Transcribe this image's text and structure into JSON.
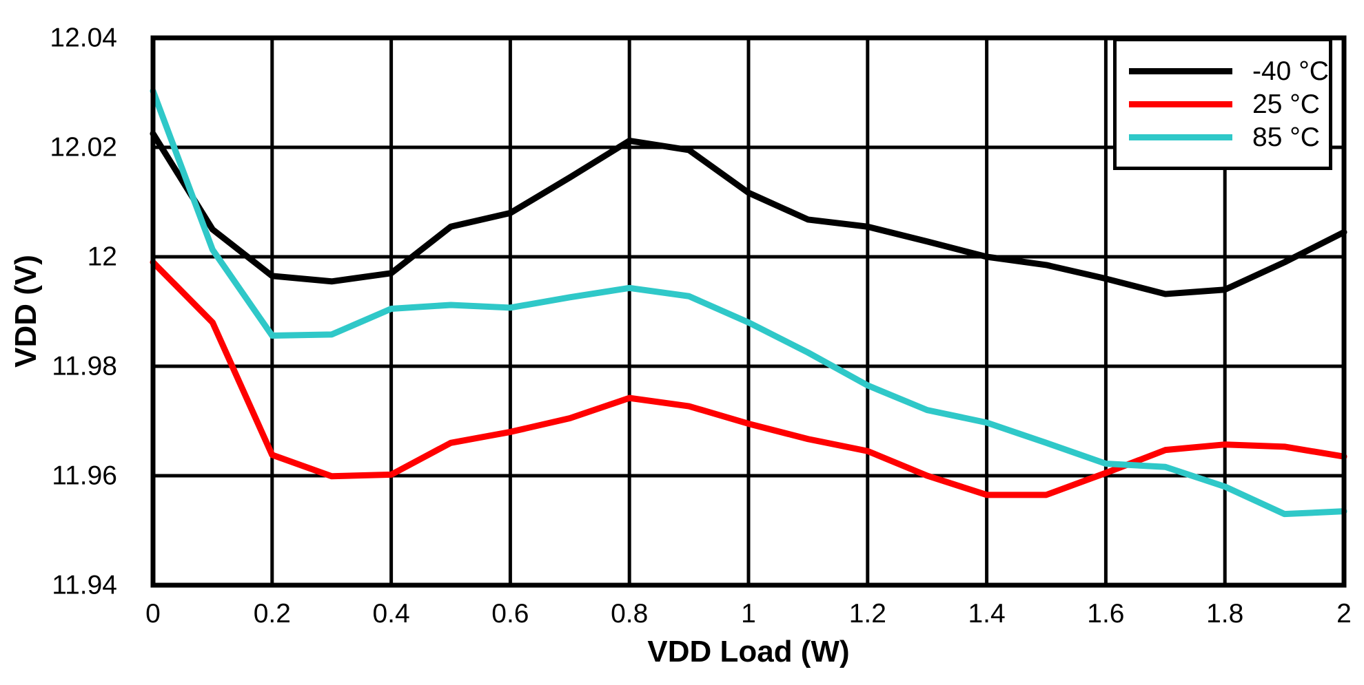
{
  "figure": {
    "background": "#FFFFFF",
    "axis_color": "#000000",
    "grid_color": "#000000"
  },
  "chart_data": {
    "type": "line",
    "title": "",
    "xlabel": "VDD Load (W)",
    "ylabel": "VDD (V)",
    "xlim": [
      0,
      2
    ],
    "ylim": [
      11.94,
      12.04
    ],
    "grid": true,
    "legend_position": "top-right",
    "x_ticks": [
      {
        "v": 0,
        "label": "0"
      },
      {
        "v": 0.2,
        "label": "0.2"
      },
      {
        "v": 0.4,
        "label": "0.4"
      },
      {
        "v": 0.6,
        "label": "0.6"
      },
      {
        "v": 0.8,
        "label": "0.8"
      },
      {
        "v": 1,
        "label": "1"
      },
      {
        "v": 1.2,
        "label": "1.2"
      },
      {
        "v": 1.4,
        "label": "1.4"
      },
      {
        "v": 1.6,
        "label": "1.6"
      },
      {
        "v": 1.8,
        "label": "1.8"
      },
      {
        "v": 2,
        "label": "2"
      }
    ],
    "y_ticks": [
      {
        "v": 11.94,
        "label": "11.94"
      },
      {
        "v": 11.96,
        "label": "11.96"
      },
      {
        "v": 11.98,
        "label": "11.98"
      },
      {
        "v": 12,
        "label": "12"
      },
      {
        "v": 12.02,
        "label": "12.02"
      },
      {
        "v": 12.04,
        "label": "12.04"
      }
    ],
    "x": [
      0,
      0.1,
      0.2,
      0.3,
      0.4,
      0.5,
      0.6,
      0.7,
      0.8,
      0.9,
      1,
      1.1,
      1.2,
      1.3,
      1.4,
      1.5,
      1.6,
      1.7,
      1.8,
      1.9,
      2
    ],
    "series": [
      {
        "name": "-40 °C",
        "color": "#000000",
        "values": [
          12.0225,
          12.005,
          11.9965,
          11.9955,
          11.997,
          12.0055,
          12.008,
          12.0145,
          12.0212,
          12.0195,
          12.0117,
          12.0068,
          12.0055,
          12.0028,
          12.0,
          11.9985,
          11.996,
          11.9932,
          11.994,
          11.999,
          12.0045
        ]
      },
      {
        "name": "25 °C",
        "color": "#FF0000",
        "values": [
          11.999,
          11.988,
          11.9638,
          11.9599,
          11.9602,
          11.966,
          11.968,
          11.9705,
          11.9742,
          11.9727,
          11.9695,
          11.9667,
          11.9645,
          11.96,
          11.9565,
          11.9565,
          11.9605,
          11.9647,
          11.9657,
          11.9653,
          11.9635
        ]
      },
      {
        "name": "85 °C",
        "color": "#2FC8C8",
        "values": [
          12.0303,
          12.0013,
          11.9856,
          11.9858,
          11.9905,
          11.9912,
          11.9907,
          11.9926,
          11.9943,
          11.9928,
          11.988,
          11.9825,
          11.9765,
          11.972,
          11.9697,
          11.966,
          11.9622,
          11.9616,
          11.958,
          11.953,
          11.9535
        ]
      }
    ]
  }
}
